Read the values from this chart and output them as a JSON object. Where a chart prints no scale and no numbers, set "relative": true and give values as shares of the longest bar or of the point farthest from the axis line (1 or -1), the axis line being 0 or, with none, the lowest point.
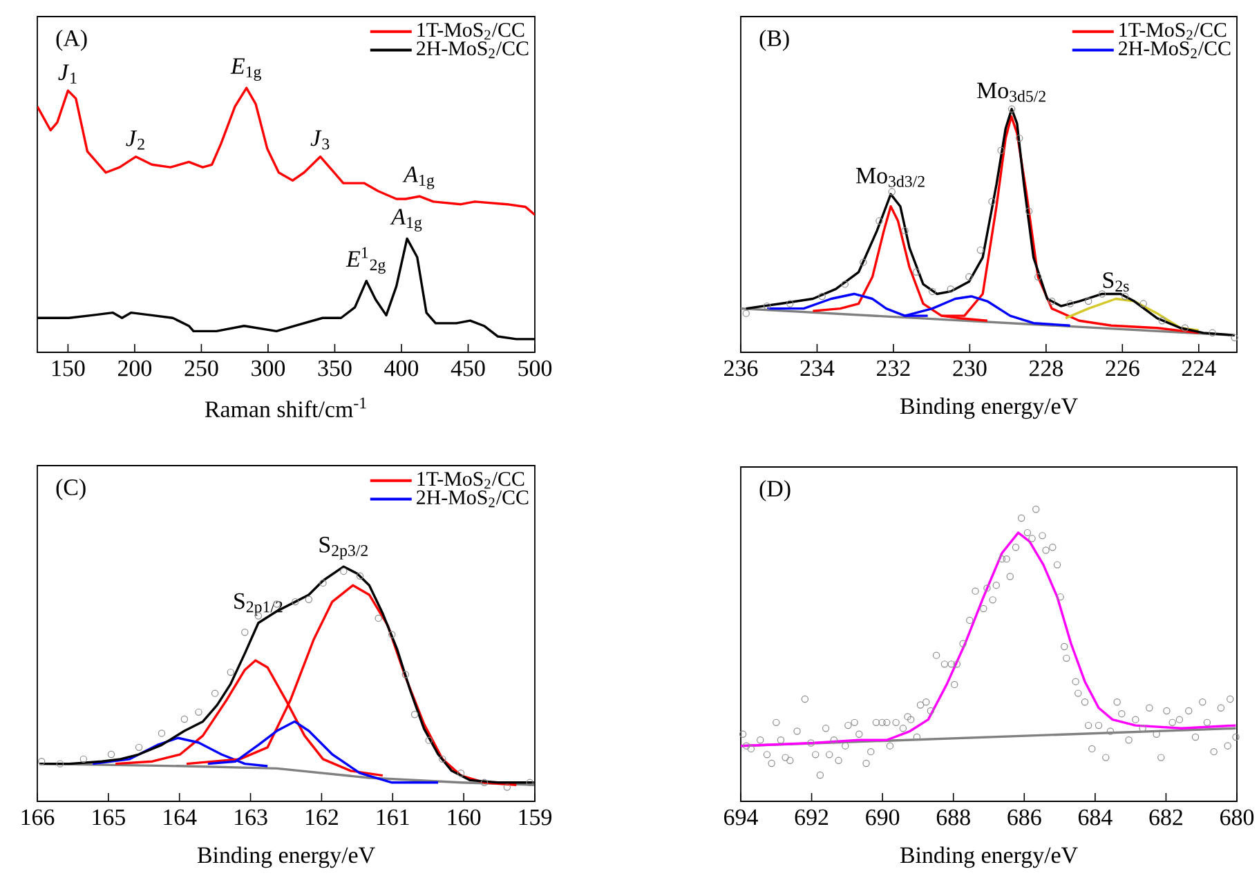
{
  "chart_data": [
    {
      "type": "line",
      "title": "(A)",
      "xlabel": "Raman shift/cm$^{-1}$",
      "relative": true,
      "xlim": [
        127,
        500
      ],
      "xticks": [
        150,
        200,
        250,
        300,
        350,
        400,
        450,
        500
      ],
      "legend": "top right",
      "series": [
        {
          "name": "1T-MoS$_{2}$/CC",
          "color": "#ff0000",
          "x": [
            127,
            136.9,
            142,
            150,
            155.9,
            164.5,
            178.4,
            188.7,
            200.8,
            212.9,
            226.8,
            240.6,
            251,
            257.9,
            264.8,
            275.2,
            283.8,
            290.7,
            299.4,
            308,
            318.4,
            327,
            339.2,
            347.8,
            356.4,
            372,
            382.4,
            396.2,
            403.1,
            413.5,
            423.9,
            444.6,
            455,
            479.2,
            493,
            500
          ],
          "values": [
            0.93,
            0.84,
            0.87,
            0.99,
            0.96,
            0.76,
            0.68,
            0.7,
            0.74,
            0.71,
            0.7,
            0.72,
            0.7,
            0.71,
            0.79,
            0.93,
            1,
            0.94,
            0.77,
            0.68,
            0.65,
            0.68,
            0.74,
            0.69,
            0.64,
            0.64,
            0.61,
            0.58,
            0.58,
            0.59,
            0.57,
            0.56,
            0.57,
            0.56,
            0.55,
            0.52
          ]
        },
        {
          "name": "2H-MoS$_{2}$/CC",
          "color": "#000000",
          "x": [
            127,
            150.7,
            168,
            183.5,
            190.5,
            197.4,
            212.9,
            228.5,
            240.6,
            244.1,
            261.3,
            282.1,
            306.3,
            320.1,
            340.9,
            354.7,
            365.1,
            373.7,
            380.6,
            388.6,
            396.2,
            404.2,
            411.8,
            418.7,
            425.6,
            441.2,
            451.5,
            461.9,
            472.3,
            486.1,
            500
          ],
          "values": [
            0.13,
            0.13,
            0.14,
            0.15,
            0.13,
            0.15,
            0.14,
            0.13,
            0.1,
            0.08,
            0.08,
            0.1,
            0.08,
            0.1,
            0.13,
            0.13,
            0.17,
            0.27,
            0.2,
            0.14,
            0.25,
            0.43,
            0.36,
            0.15,
            0.11,
            0.11,
            0.12,
            0.1,
            0.06,
            0.05,
            0.05
          ]
        }
      ],
      "annotations": [
        {
          "text": "*J*$_{1}$",
          "x": 150,
          "y": 0.99
        },
        {
          "text": "*J*$_{2}$",
          "x": 200.8,
          "y": 0.74
        },
        {
          "text": "*E*$_{1g}$",
          "x": 283.8,
          "y": 1
        },
        {
          "text": "*J*$_{3}$",
          "x": 339.2,
          "y": 0.74
        },
        {
          "text": "*A*$_{1g}$",
          "x": 413.5,
          "y": 0.59
        },
        {
          "text": "*E*$^{1}$$_{2g}$",
          "x": 373.7,
          "y": 0.27
        },
        {
          "text": "*A*$_{1g}$",
          "x": 404.2,
          "y": 0.43
        }
      ]
    },
    {
      "type": "line",
      "title": "(B)",
      "xlabel": "Binding energy/eV",
      "relative": true,
      "xlim": [
        236,
        223
      ],
      "xticks": [
        236,
        234,
        232,
        230,
        228,
        226,
        224
      ],
      "legend": "top right",
      "series": [
        {
          "type": "scatter",
          "marker": "circle",
          "color": "#8c8c8c",
          "x": [
            235.86,
            235.31,
            234.71,
            233.87,
            233.27,
            232.79,
            232.37,
            232.04,
            231.7,
            231.4,
            230.98,
            230.5,
            230.02,
            229.72,
            229.42,
            229.18,
            228.9,
            228.7,
            228.45,
            228.21,
            227.85,
            227.37,
            226.89,
            226.53,
            225.93,
            225.45,
            224.96,
            224.36,
            223.64,
            223.06
          ],
          "values": [
            0.16,
            0.19,
            0.2,
            0.23,
            0.28,
            0.37,
            0.54,
            0.66,
            0.5,
            0.33,
            0.25,
            0.26,
            0.31,
            0.42,
            0.62,
            0.83,
            1,
            0.88,
            0.58,
            0.31,
            0.21,
            0.2,
            0.21,
            0.24,
            0.23,
            0.2,
            0.13,
            0.1,
            0.08,
            0.06
          ]
        },
        {
          "color": "#808080",
          "x": [
            236,
            223.06
          ],
          "values": [
            0.18,
            0.07
          ]
        },
        {
          "name": "1T-MoS$_{2}$/CC",
          "color": "#ff0000",
          "x": [
            234.11,
            233.39,
            232.91,
            232.55,
            232.25,
            232.07,
            231.88,
            231.58,
            231.22,
            230.74,
            230.26,
            229.54
          ],
          "values": [
            0.17,
            0.18,
            0.2,
            0.31,
            0.5,
            0.6,
            0.54,
            0.35,
            0.2,
            0.15,
            0.14,
            0.13
          ]
        },
        {
          "name": "2H-MoS$_{2}$/CC",
          "color": "#0000ff",
          "x": [
            235.31,
            234.35,
            233.63,
            233.03,
            232.55,
            232.19,
            231.7,
            231.1
          ],
          "values": [
            0.18,
            0.18,
            0.22,
            0.24,
            0.22,
            0.18,
            0.15,
            0.15
          ]
        },
        {
          "color": "#ff0000",
          "x": [
            230.74,
            230.14,
            229.66,
            229.3,
            229.06,
            228.91,
            228.76,
            228.52,
            228.21,
            227.85,
            227.13,
            226.29,
            225.09,
            224
          ],
          "values": [
            0.15,
            0.15,
            0.24,
            0.6,
            0.88,
            0.97,
            0.9,
            0.66,
            0.31,
            0.18,
            0.13,
            0.11,
            0.1,
            0.08
          ]
        },
        {
          "color": "#0000ff",
          "x": [
            231.7,
            230.98,
            230.38,
            229.96,
            229.54,
            228.94,
            228.33,
            227.37
          ],
          "values": [
            0.15,
            0.18,
            0.22,
            0.23,
            0.21,
            0.15,
            0.12,
            0.11
          ]
        },
        {
          "color": "#d4c82a",
          "x": [
            227.49,
            226.89,
            226.17,
            225.69,
            225.09,
            224.48,
            224
          ],
          "values": [
            0.14,
            0.18,
            0.22,
            0.21,
            0.16,
            0.1,
            0.09
          ]
        },
        {
          "color": "#000000",
          "x": [
            235.86,
            234.95,
            234.11,
            233.51,
            232.91,
            232.43,
            232.07,
            231.82,
            231.58,
            231.22,
            230.86,
            230.5,
            230.02,
            229.66,
            229.3,
            229.06,
            228.9,
            228.76,
            228.58,
            228.33,
            227.97,
            227.61,
            227.13,
            226.53,
            226.05,
            225.69,
            225.09,
            224.48,
            223.88,
            223.06
          ],
          "values": [
            0.18,
            0.2,
            0.22,
            0.26,
            0.33,
            0.5,
            0.65,
            0.6,
            0.43,
            0.28,
            0.24,
            0.25,
            0.29,
            0.39,
            0.69,
            0.92,
            1,
            0.94,
            0.69,
            0.39,
            0.22,
            0.19,
            0.21,
            0.24,
            0.24,
            0.21,
            0.14,
            0.1,
            0.08,
            0.07
          ]
        }
      ],
      "annotations": [
        {
          "text": "Mo$_{3d5/2}$",
          "x": 228.9,
          "y": 1
        },
        {
          "text": "Mo$_{3d3/2}$",
          "x": 232.07,
          "y": 0.65
        },
        {
          "text": "S$_{2s}$",
          "x": 226.17,
          "y": 0.22
        }
      ]
    },
    {
      "type": "line",
      "title": "(C)",
      "xlabel": "Binding energy/eV",
      "relative": true,
      "xlim": [
        166,
        159
      ],
      "xticks": [
        166,
        165,
        164,
        163,
        162,
        161,
        160,
        159
      ],
      "legend": "top right",
      "series": [
        {
          "type": "scatter",
          "marker": "circle",
          "color": "#8c8c8c",
          "x": [
            165.94,
            165.68,
            165.35,
            164.96,
            164.57,
            164.25,
            163.93,
            163.73,
            163.5,
            163.28,
            163.08,
            162.89,
            162.63,
            162.37,
            162.18,
            161.98,
            161.69,
            161.46,
            161.2,
            161.01,
            160.82,
            160.69,
            160.49,
            160.3,
            160.04,
            159.71,
            159.39,
            159.07
          ],
          "values": [
            0.17,
            0.16,
            0.18,
            0.2,
            0.23,
            0.29,
            0.35,
            0.38,
            0.46,
            0.55,
            0.72,
            0.79,
            0.84,
            0.85,
            0.86,
            0.93,
            0.98,
            0.96,
            0.78,
            0.71,
            0.54,
            0.37,
            0.26,
            0.18,
            0.12,
            0.08,
            0.06,
            0.08
          ]
        },
        {
          "color": "#808080",
          "x": [
            165.97,
            163.93,
            162.63,
            161.33,
            160.04,
            159.01
          ],
          "values": [
            0.16,
            0.15,
            0.14,
            0.1,
            0.08,
            0.07
          ]
        },
        {
          "name": "1T-MoS$_{2}$/CC",
          "color": "#ff0000",
          "x": [
            164.9,
            164.38,
            163.99,
            163.67,
            163.34,
            163.08,
            162.93,
            162.76,
            162.5,
            162.24,
            161.98,
            161.59,
            161.14
          ],
          "values": [
            0.16,
            0.17,
            0.2,
            0.28,
            0.43,
            0.56,
            0.6,
            0.57,
            0.43,
            0.28,
            0.18,
            0.13,
            0.11
          ]
        },
        {
          "name": "2H-MoS$_{2}$/CC",
          "color": "#0000ff",
          "x": [
            165.22,
            164.7,
            164.31,
            164.02,
            163.73,
            163.41,
            163.08,
            162.76
          ],
          "values": [
            0.16,
            0.18,
            0.24,
            0.27,
            0.25,
            0.2,
            0.16,
            0.15
          ]
        },
        {
          "color": "#ff0000",
          "x": [
            163.9,
            163.15,
            162.76,
            162.44,
            162.11,
            161.85,
            161.56,
            161.33,
            161.07,
            160.82,
            160.56,
            160.3,
            160.04,
            159.71,
            159.26
          ],
          "values": [
            0.16,
            0.18,
            0.23,
            0.43,
            0.69,
            0.85,
            0.92,
            0.88,
            0.75,
            0.53,
            0.33,
            0.18,
            0.11,
            0.08,
            0.07
          ]
        },
        {
          "color": "#0000ff",
          "x": [
            163.6,
            163.21,
            162.89,
            162.63,
            162.38,
            162.18,
            161.85,
            161.46,
            161.01,
            160.36
          ],
          "values": [
            0.16,
            0.17,
            0.24,
            0.3,
            0.34,
            0.3,
            0.2,
            0.12,
            0.08,
            0.08
          ]
        },
        {
          "color": "#000000",
          "x": [
            165.97,
            165.55,
            165.09,
            164.83,
            164.57,
            164.25,
            163.93,
            163.67,
            163.47,
            163.28,
            163.08,
            162.89,
            162.63,
            162.37,
            162.18,
            161.98,
            161.69,
            161.5,
            161.33,
            161.14,
            160.94,
            160.75,
            160.56,
            160.36,
            160.17,
            159.91,
            159.52,
            159.01
          ],
          "values": [
            0.16,
            0.16,
            0.17,
            0.18,
            0.2,
            0.24,
            0.3,
            0.34,
            0.41,
            0.5,
            0.63,
            0.76,
            0.81,
            0.85,
            0.88,
            0.94,
            1,
            0.97,
            0.92,
            0.8,
            0.65,
            0.47,
            0.31,
            0.2,
            0.13,
            0.09,
            0.08,
            0.08
          ]
        }
      ],
      "annotations": [
        {
          "text": "S$_{2p1/2}$",
          "x": 162.89,
          "y": 0.76
        },
        {
          "text": "S$_{2p3/2}$",
          "x": 161.69,
          "y": 1
        }
      ]
    },
    {
      "type": "line",
      "title": "(D)",
      "xlabel": "Binding energy/eV",
      "relative": true,
      "xlim": [
        694,
        680
      ],
      "xticks": [
        694,
        692,
        690,
        688,
        686,
        684,
        682,
        680
      ],
      "series": [
        {
          "type": "scatter",
          "marker": "circle",
          "color": "#8c8c8c",
          "x": [
            693.94,
            693.84,
            693.71,
            693.45,
            693.26,
            693.13,
            693.0,
            692.87,
            692.74,
            692.61,
            692.41,
            692.19,
            692.02,
            691.89,
            691.76,
            691.6,
            691.5,
            691.37,
            691.24,
            691.05,
            690.97,
            690.79,
            690.66,
            690.46,
            690.33,
            690.18,
            690.01,
            689.88,
            689.79,
            689.62,
            689.42,
            689.29,
            689.2,
            689.03,
            688.93,
            688.77,
            688.64,
            688.48,
            688.25,
            688.06,
            687.9,
            687.97,
            687.73,
            687.54,
            687.38,
            687.15,
            687.05,
            686.89,
            686.79,
            686.63,
            686.5,
            686.4,
            686.24,
            686.08,
            685.91,
            685.78,
            685.67,
            685.49,
            685.39,
            685.2,
            685.07,
            684.98,
            684.87,
            684.81,
            684.55,
            684.48,
            684.29,
            684.19,
            684.09,
            683.9,
            683.7,
            683.57,
            683.38,
            683.25,
            683.05,
            682.86,
            682.66,
            682.47,
            682.27,
            682.14,
            681.98,
            681.82,
            681.62,
            681.36,
            681.17,
            680.97,
            680.84,
            680.65,
            680.45,
            680.26,
            680.19,
            680.03
          ],
          "values": [
            0.23,
            0.19,
            0.18,
            0.21,
            0.16,
            0.13,
            0.27,
            0.21,
            0.15,
            0.14,
            0.24,
            0.35,
            0.2,
            0.16,
            0.09,
            0.25,
            0.16,
            0.21,
            0.14,
            0.19,
            0.26,
            0.27,
            0.23,
            0.13,
            0.17,
            0.27,
            0.27,
            0.27,
            0.19,
            0.27,
            0.25,
            0.29,
            0.28,
            0.22,
            0.33,
            0.34,
            0.31,
            0.5,
            0.47,
            0.47,
            0.47,
            0.4,
            0.54,
            0.62,
            0.72,
            0.66,
            0.73,
            0.69,
            0.74,
            0.83,
            0.83,
            0.77,
            0.87,
            0.97,
            0.92,
            0.9,
            1,
            0.91,
            0.86,
            0.87,
            0.81,
            0.7,
            0.53,
            0.49,
            0.41,
            0.37,
            0.34,
            0.26,
            0.18,
            0.26,
            0.15,
            0.24,
            0.34,
            0.3,
            0.21,
            0.28,
            0.25,
            0.32,
            0.23,
            0.15,
            0.31,
            0.27,
            0.28,
            0.31,
            0.22,
            0.34,
            0.27,
            0.17,
            0.32,
            0.19,
            0.35,
            0.22
          ]
        },
        {
          "color": "#808080",
          "x": [
            694,
            680.03
          ],
          "values": [
            0.19,
            0.25
          ]
        },
        {
          "color": "#ff00ff",
          "x": [
            694,
            691.96,
            690.66,
            689.88,
            689.23,
            688.71,
            688.19,
            687.67,
            687.15,
            686.63,
            686.17,
            685.85,
            685.46,
            685.07,
            684.68,
            684.29,
            683.9,
            683.51,
            682.86,
            681.56,
            680.03
          ],
          "values": [
            0.19,
            0.2,
            0.21,
            0.21,
            0.24,
            0.28,
            0.4,
            0.54,
            0.7,
            0.85,
            0.92,
            0.89,
            0.81,
            0.7,
            0.54,
            0.41,
            0.32,
            0.28,
            0.26,
            0.25,
            0.26
          ]
        }
      ]
    }
  ]
}
